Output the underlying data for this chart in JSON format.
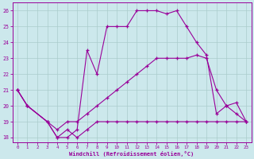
{
  "xlabel": "Windchill (Refroidissement éolien,°C)",
  "bg_color": "#cce8ec",
  "line_color": "#990099",
  "grid_color": "#aacccc",
  "xlim": [
    -0.5,
    23.5
  ],
  "ylim": [
    17.7,
    26.5
  ],
  "yticks": [
    18,
    19,
    20,
    21,
    22,
    23,
    24,
    25,
    26
  ],
  "xticks": [
    0,
    1,
    2,
    3,
    4,
    5,
    6,
    7,
    8,
    9,
    10,
    11,
    12,
    13,
    14,
    15,
    16,
    17,
    18,
    19,
    20,
    21,
    22,
    23
  ],
  "line1_x": [
    0,
    1,
    3,
    4,
    5,
    6,
    7,
    8,
    9,
    10,
    11,
    12,
    13,
    14,
    15,
    16,
    17,
    18,
    19,
    20,
    21,
    22,
    23
  ],
  "line1_y": [
    21,
    20,
    19,
    18,
    18.5,
    18,
    18.5,
    19,
    19,
    19,
    19,
    19,
    19,
    19,
    19,
    19,
    19,
    19,
    19,
    19,
    19,
    19,
    19
  ],
  "line2_x": [
    0,
    1,
    3,
    4,
    5,
    6,
    7,
    8,
    9,
    10,
    11,
    12,
    13,
    14,
    15,
    16,
    17,
    18,
    19,
    20,
    21,
    22,
    23
  ],
  "line2_y": [
    21,
    20,
    19,
    18.5,
    19,
    19,
    19.5,
    20,
    20.5,
    21,
    21.5,
    22,
    22.5,
    23,
    23,
    23,
    23,
    23.2,
    23,
    21,
    20,
    19.5,
    19
  ],
  "line3_x": [
    0,
    1,
    3,
    4,
    5,
    6,
    7,
    8,
    9,
    10,
    11,
    12,
    13,
    14,
    15,
    16,
    17,
    18,
    19,
    20,
    21,
    22,
    23
  ],
  "line3_y": [
    21,
    20,
    19,
    18,
    18,
    18.5,
    23.5,
    22,
    25,
    25,
    25,
    26,
    26,
    26,
    25.8,
    26,
    25,
    24,
    23.2,
    19.5,
    20,
    20.2,
    19
  ]
}
